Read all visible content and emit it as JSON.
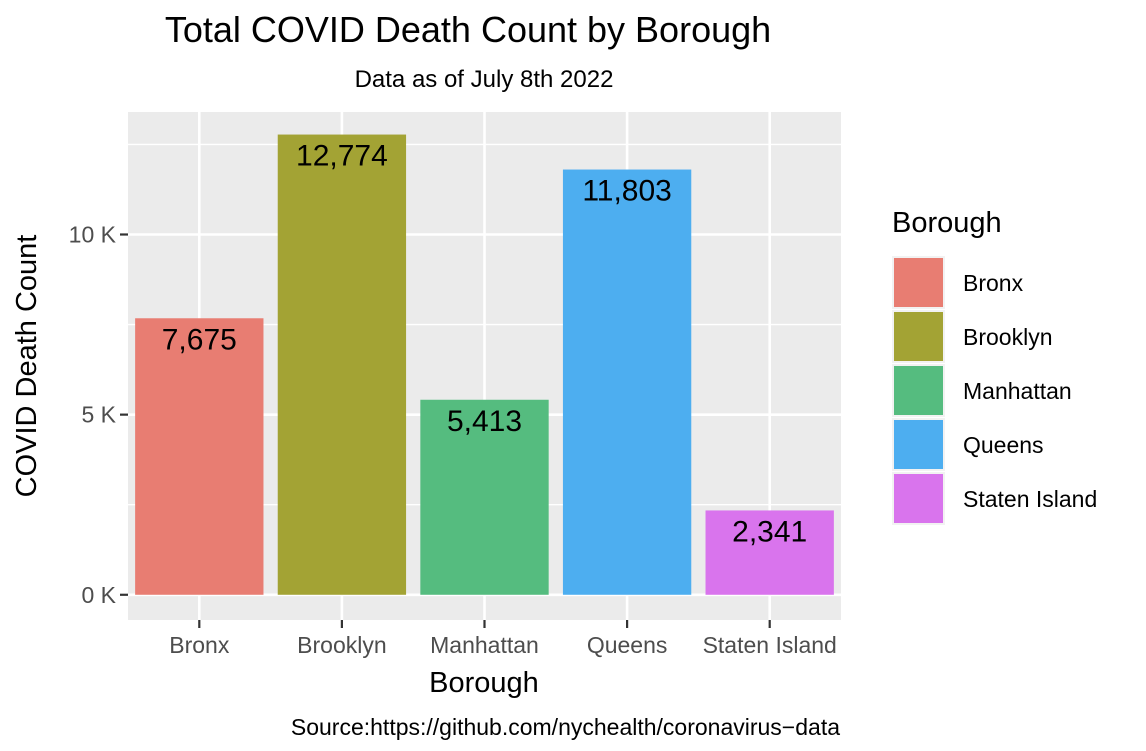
{
  "chart_data": {
    "type": "bar",
    "title": "Total COVID Death Count by Borough",
    "subtitle": "Data as of July 8th 2022",
    "xlabel": "Borough",
    "ylabel": "COVID Death Count",
    "caption": "Source:https://github.com/nychealth/coronavirus−data",
    "categories": [
      "Bronx",
      "Brooklyn",
      "Manhattan",
      "Queens",
      "Staten Island"
    ],
    "values": [
      7675,
      12774,
      5413,
      11803,
      2341
    ],
    "value_labels": [
      "7,675",
      "12,774",
      "5,413",
      "11,803",
      "2,341"
    ],
    "colors": [
      "#E87D72",
      "#A3A334",
      "#55BC7F",
      "#4DAEF0",
      "#D974ED"
    ],
    "ylim": [
      -700,
      13400
    ],
    "yticks": [
      0,
      5000,
      10000
    ],
    "ytick_labels": [
      "0 K",
      "5 K",
      "10 K"
    ],
    "ygrid_minor": [
      2500,
      7500,
      12500
    ],
    "grid": true,
    "legend": {
      "title": "Borough",
      "position": "right",
      "entries": [
        "Bronx",
        "Brooklyn",
        "Manhattan",
        "Queens",
        "Staten Island"
      ]
    }
  }
}
